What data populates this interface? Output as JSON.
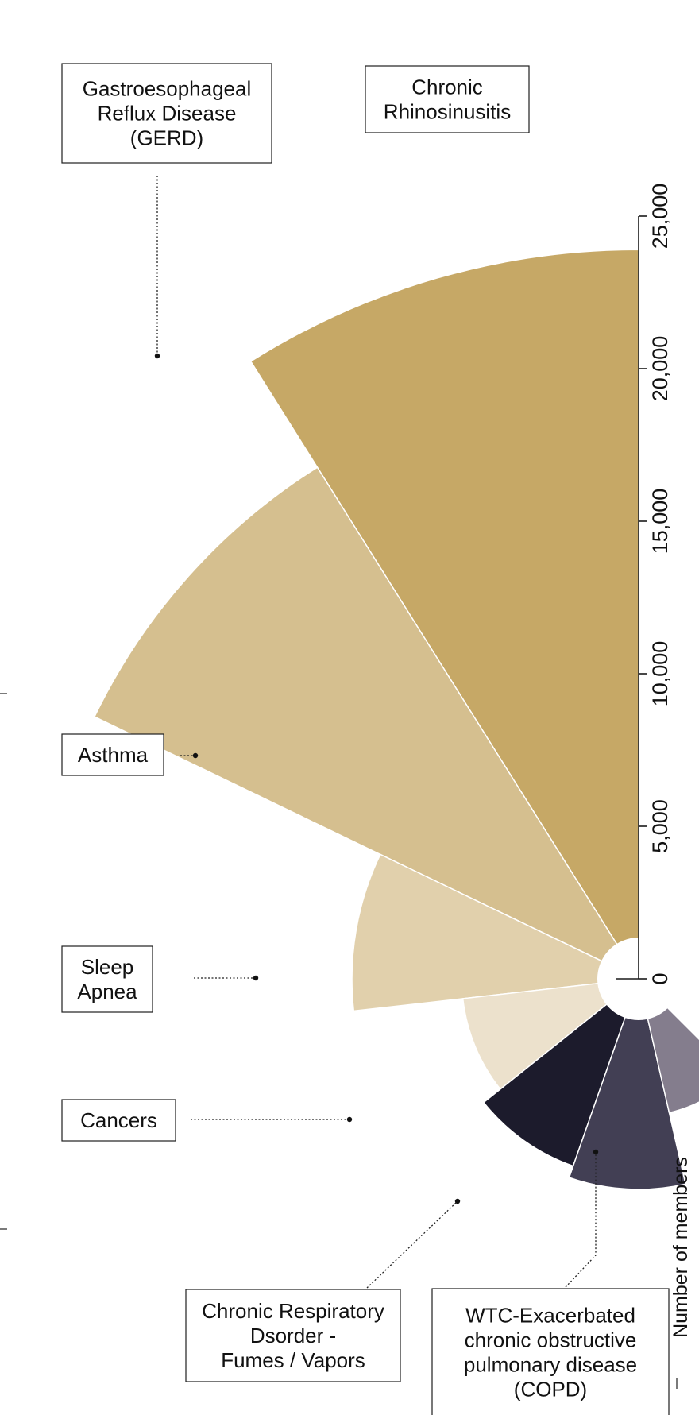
{
  "chart_data": {
    "type": "radial-bar",
    "axis_title": "Number of members",
    "rmax": 25000,
    "ticks": [
      "0",
      "5,000",
      "10,000",
      "15,000",
      "20,000",
      "25,000"
    ],
    "tick_values": [
      0,
      5000,
      10000,
      15000,
      20000,
      25000
    ],
    "segments": [
      {
        "label": [
          "Chronic",
          "Rhinosinusitis"
        ],
        "value": 23900,
        "color": "#c6a866"
      },
      {
        "label": [
          "Gastroesophageal",
          "Reflux Disease",
          "(GERD)"
        ],
        "value": 19800,
        "color": "#d5bf8f"
      },
      {
        "label": [
          "Asthma"
        ],
        "value": 9400,
        "color": "#e1d0ac"
      },
      {
        "label": [
          "Sleep",
          "Apnea"
        ],
        "value": 5800,
        "color": "#ece1cc"
      },
      {
        "label": [
          "Cancers"
        ],
        "value": 6500,
        "color": "#1c1b2c"
      },
      {
        "label": [
          "Chronic Respiratory",
          "Dsorder -",
          "Fumes / Vapors"
        ],
        "value": 6900,
        "color": "#423f54"
      },
      {
        "label": [
          "WTC-Exacerbated",
          "chronic obstructive",
          "pulmonary disease",
          "(COPD)"
        ],
        "value": 4500,
        "color": "#847d8d"
      }
    ]
  }
}
